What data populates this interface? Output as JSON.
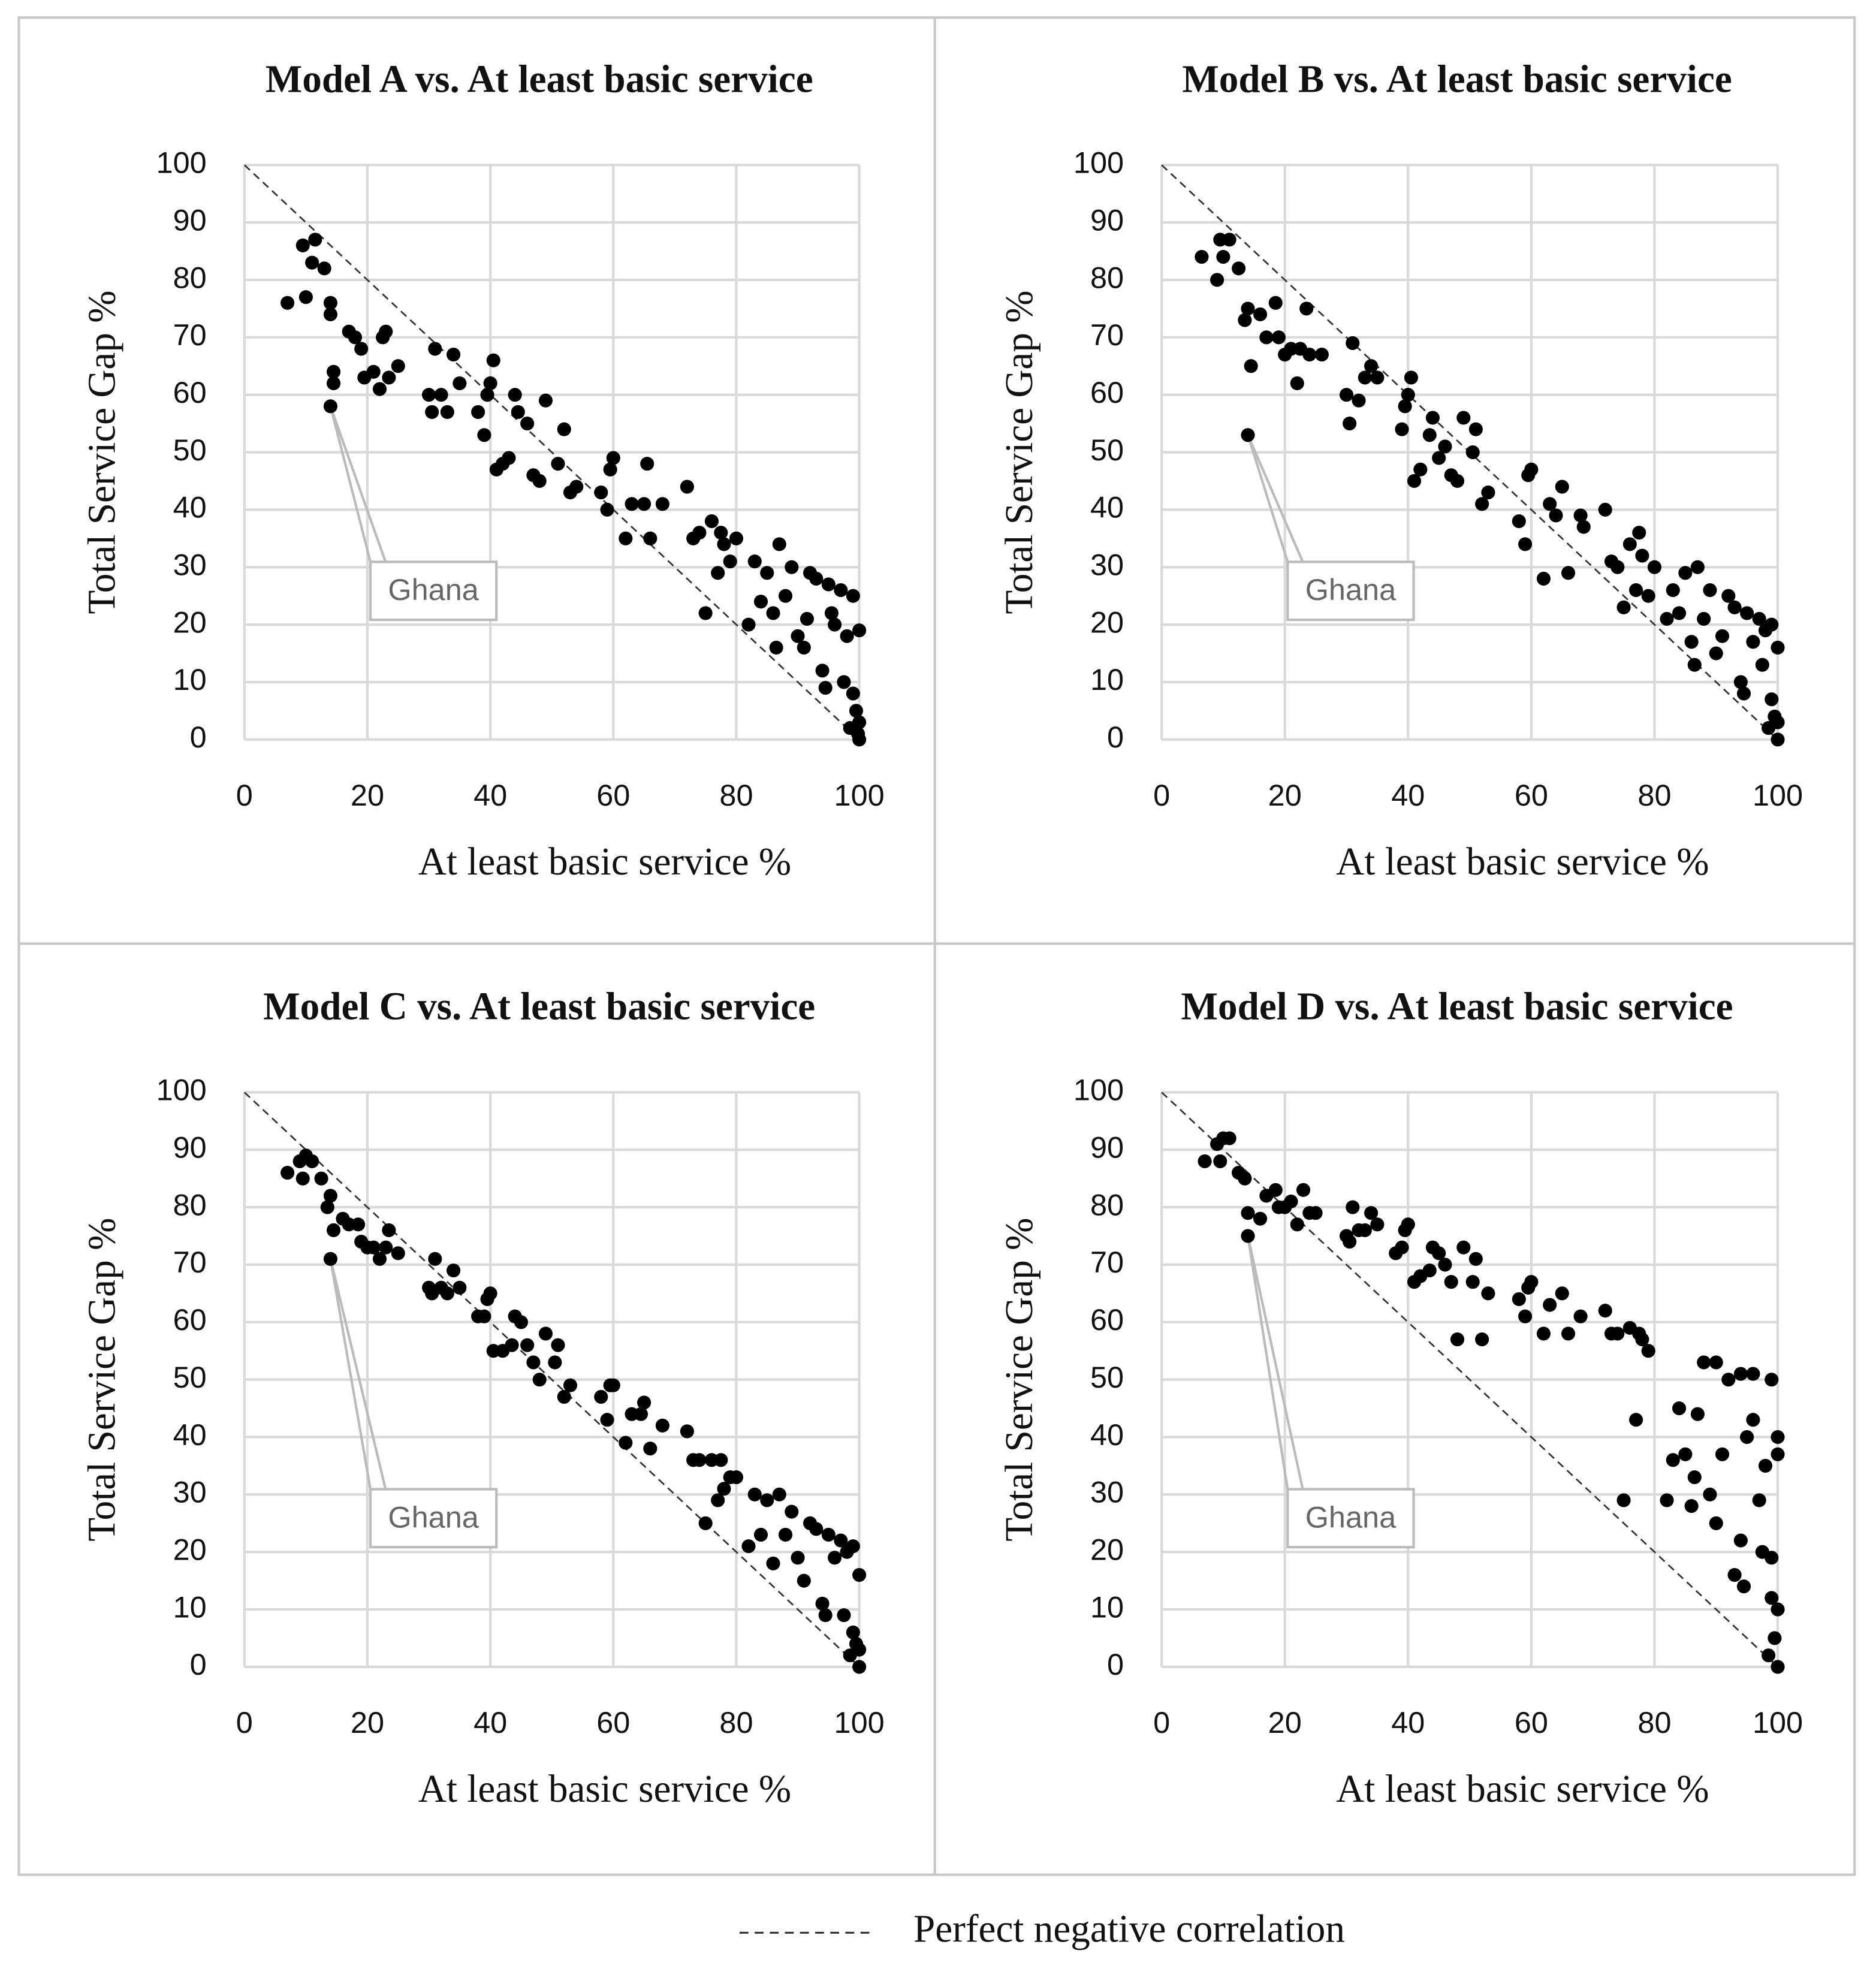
{
  "legend": {
    "label": "Perfect negative correlation"
  },
  "chart_data": [
    {
      "type": "scatter",
      "title": "Model A vs. At least basic service",
      "x_label": "At least basic service %",
      "y_label": "Total Service Gap %",
      "color": "#000000",
      "grid": true,
      "xlim": [
        0,
        100
      ],
      "ylim": [
        0,
        100
      ],
      "xticks": [
        0,
        20,
        40,
        60,
        80,
        100
      ],
      "yticks": [
        0,
        10,
        20,
        30,
        40,
        50,
        60,
        70,
        80,
        90,
        100
      ],
      "annotations": [
        {
          "text": "Ghana",
          "x": 14,
          "y": 58
        }
      ],
      "x": [
        7,
        9.5,
        10,
        11,
        11.5,
        13,
        14,
        14,
        14.5,
        14.5,
        14,
        17,
        18,
        19,
        19.5,
        21,
        22,
        22.5,
        23,
        23.5,
        25,
        30,
        30.5,
        31,
        32,
        33,
        34,
        35,
        38,
        39,
        39.5,
        40,
        40.5,
        41,
        42,
        43,
        44,
        44.5,
        46,
        47,
        48,
        49,
        51,
        52,
        53,
        54,
        58,
        59,
        59.5,
        60,
        62,
        63,
        65,
        65.5,
        66,
        68,
        72,
        73,
        74,
        75,
        76,
        77,
        77.5,
        78,
        79,
        80,
        82,
        83,
        84,
        85,
        86,
        86.5,
        87,
        88,
        89,
        90,
        91,
        91.5,
        92,
        93,
        94,
        94.5,
        95,
        95.5,
        96,
        97,
        97.5,
        98,
        98.5,
        99,
        99,
        99.5,
        100,
        100,
        100,
        99.8
      ],
      "y": [
        76,
        86,
        77,
        83,
        87,
        82,
        76,
        74,
        64,
        62,
        58,
        71,
        70,
        68,
        63,
        64,
        61,
        70,
        71,
        63,
        65,
        60,
        57,
        68,
        60,
        57,
        67,
        62,
        57,
        53,
        60,
        62,
        66,
        47,
        48,
        49,
        60,
        57,
        55,
        46,
        45,
        59,
        48,
        54,
        43,
        44,
        43,
        40,
        47,
        49,
        35,
        41,
        41,
        48,
        35,
        41,
        44,
        35,
        36,
        22,
        38,
        29,
        36,
        34,
        31,
        35,
        20,
        31,
        24,
        29,
        22,
        16,
        34,
        25,
        30,
        18,
        16,
        21,
        29,
        28,
        12,
        9,
        27,
        22,
        20,
        26,
        10,
        18,
        2,
        8,
        25,
        5,
        19,
        3,
        0,
        1
      ]
    },
    {
      "type": "scatter",
      "title": "Model B vs. At least basic service",
      "x_label": "At least basic service %",
      "y_label": "Total Service Gap %",
      "color": "#000000",
      "grid": true,
      "xlim": [
        0,
        100
      ],
      "ylim": [
        0,
        100
      ],
      "xticks": [
        0,
        20,
        40,
        60,
        80,
        100
      ],
      "yticks": [
        0,
        10,
        20,
        30,
        40,
        50,
        60,
        70,
        80,
        90,
        100
      ],
      "annotations": [
        {
          "text": "Ghana",
          "x": 14,
          "y": 53
        }
      ],
      "x": [
        6.5,
        9,
        9.5,
        10,
        11,
        12.5,
        13.5,
        14,
        14.5,
        14,
        16,
        17,
        18.5,
        19,
        20,
        21,
        22,
        22.5,
        23.5,
        24,
        26,
        30,
        30.5,
        31,
        32,
        33,
        34,
        35,
        39,
        39.5,
        40,
        40.5,
        41,
        42,
        43.5,
        44,
        45,
        46,
        47,
        48,
        49,
        50.5,
        51,
        52,
        53,
        58,
        59,
        59.5,
        60,
        62,
        63,
        64,
        65,
        66,
        68,
        68.5,
        72,
        73,
        74,
        75,
        76,
        77,
        77.5,
        78,
        79,
        80,
        82,
        83,
        84,
        85,
        86,
        86.5,
        87,
        88,
        89,
        90,
        91,
        92,
        93,
        94,
        94.5,
        95,
        96,
        97,
        97.5,
        98,
        98.5,
        99,
        99,
        99.5,
        100,
        100,
        100
      ],
      "y": [
        84,
        80,
        87,
        84,
        87,
        82,
        73,
        75,
        65,
        53,
        74,
        70,
        76,
        70,
        67,
        68,
        62,
        68,
        75,
        67,
        67,
        60,
        55,
        69,
        59,
        63,
        65,
        63,
        54,
        58,
        60,
        63,
        45,
        47,
        53,
        56,
        49,
        51,
        46,
        45,
        56,
        50,
        54,
        41,
        43,
        38,
        34,
        46,
        47,
        28,
        41,
        39,
        44,
        29,
        39,
        37,
        40,
        31,
        30,
        23,
        34,
        26,
        36,
        32,
        25,
        30,
        21,
        26,
        22,
        29,
        17,
        13,
        30,
        21,
        26,
        15,
        18,
        25,
        23,
        10,
        8,
        22,
        17,
        21,
        13,
        19,
        2,
        7,
        20,
        4,
        16,
        3,
        0
      ]
    },
    {
      "type": "scatter",
      "title": "Model C vs. At least basic service",
      "x_label": "At least basic service %",
      "y_label": "Total Service Gap %",
      "color": "#000000",
      "grid": true,
      "xlim": [
        0,
        100
      ],
      "ylim": [
        0,
        100
      ],
      "xticks": [
        0,
        20,
        40,
        60,
        80,
        100
      ],
      "yticks": [
        0,
        10,
        20,
        30,
        40,
        50,
        60,
        70,
        80,
        90,
        100
      ],
      "annotations": [
        {
          "text": "Ghana",
          "x": 14,
          "y": 71
        }
      ],
      "x": [
        7,
        9,
        9.5,
        10,
        11,
        12.5,
        13.5,
        14,
        14.5,
        14,
        16,
        17,
        18.5,
        19,
        20,
        21,
        22,
        23,
        23.5,
        25,
        30,
        30.5,
        31,
        32,
        33,
        34,
        35,
        38,
        39,
        39.5,
        40,
        40.5,
        42,
        43.5,
        44,
        45,
        46,
        47,
        48,
        49,
        50.5,
        51,
        52,
        53,
        58,
        59,
        59.5,
        60,
        62,
        63,
        64.5,
        65,
        66,
        68,
        72,
        73,
        74,
        75,
        76,
        77,
        77.5,
        78,
        79,
        80,
        82,
        83,
        84,
        85,
        86,
        87,
        88,
        89,
        90,
        91,
        92,
        93,
        94,
        94.5,
        95,
        96,
        97,
        97.5,
        98,
        98.5,
        99,
        99,
        99.5,
        100,
        100,
        100
      ],
      "y": [
        86,
        88,
        85,
        89,
        88,
        85,
        80,
        82,
        76,
        71,
        78,
        77,
        77,
        74,
        73,
        73,
        71,
        73,
        76,
        72,
        66,
        65,
        71,
        66,
        65,
        69,
        66,
        61,
        61,
        64,
        65,
        55,
        55,
        56,
        61,
        60,
        56,
        53,
        50,
        58,
        53,
        56,
        47,
        49,
        47,
        43,
        49,
        49,
        39,
        44,
        44,
        46,
        38,
        42,
        41,
        36,
        36,
        25,
        36,
        29,
        36,
        31,
        33,
        33,
        21,
        30,
        23,
        29,
        18,
        30,
        23,
        27,
        19,
        15,
        25,
        24,
        11,
        9,
        23,
        19,
        22,
        9,
        20,
        2,
        6,
        21,
        4,
        16,
        3,
        0
      ]
    },
    {
      "type": "scatter",
      "title": "Model D vs. At least basic service",
      "x_label": "At least basic service %",
      "y_label": "Total Service Gap %",
      "color": "#000000",
      "grid": true,
      "xlim": [
        0,
        100
      ],
      "ylim": [
        0,
        100
      ],
      "xticks": [
        0,
        20,
        40,
        60,
        80,
        100
      ],
      "yticks": [
        0,
        10,
        20,
        30,
        40,
        50,
        60,
        70,
        80,
        90,
        100
      ],
      "annotations": [
        {
          "text": "Ghana",
          "x": 14,
          "y": 75
        }
      ],
      "x": [
        7,
        9,
        9.5,
        10,
        11,
        12.5,
        13.5,
        14,
        14,
        16,
        17,
        18.5,
        19,
        20,
        21,
        22,
        23,
        24,
        25,
        30,
        30.5,
        31,
        32,
        33,
        34,
        35,
        38,
        39,
        39.5,
        40,
        41,
        42,
        43.5,
        44,
        45,
        46,
        47,
        48,
        49,
        50.5,
        51,
        52,
        53,
        58,
        59,
        59.5,
        60,
        62,
        63,
        65,
        66,
        68,
        72,
        73,
        74,
        75,
        76,
        77,
        77.5,
        78,
        79,
        82,
        83,
        84,
        85,
        86,
        86.5,
        87,
        88,
        89,
        90,
        91,
        92,
        93,
        94,
        94.5,
        95,
        96,
        97,
        97.5,
        98,
        98.5,
        99,
        99,
        99.5,
        100,
        100,
        100,
        100,
        99,
        96,
        94,
        90
      ],
      "y": [
        88,
        91,
        88,
        92,
        92,
        86,
        85,
        79,
        75,
        78,
        82,
        83,
        80,
        80,
        81,
        77,
        83,
        79,
        79,
        75,
        74,
        80,
        76,
        76,
        79,
        77,
        72,
        73,
        76,
        77,
        67,
        68,
        69,
        73,
        72,
        70,
        67,
        57,
        73,
        67,
        71,
        57,
        65,
        64,
        61,
        66,
        67,
        58,
        63,
        65,
        58,
        61,
        62,
        58,
        58,
        29,
        59,
        43,
        58,
        57,
        55,
        29,
        36,
        45,
        37,
        28,
        33,
        44,
        53,
        30,
        25,
        37,
        50,
        16,
        22,
        14,
        40,
        43,
        29,
        20,
        35,
        2,
        12,
        19,
        5,
        37,
        40,
        10,
        0,
        50,
        51,
        51,
        53
      ]
    }
  ]
}
